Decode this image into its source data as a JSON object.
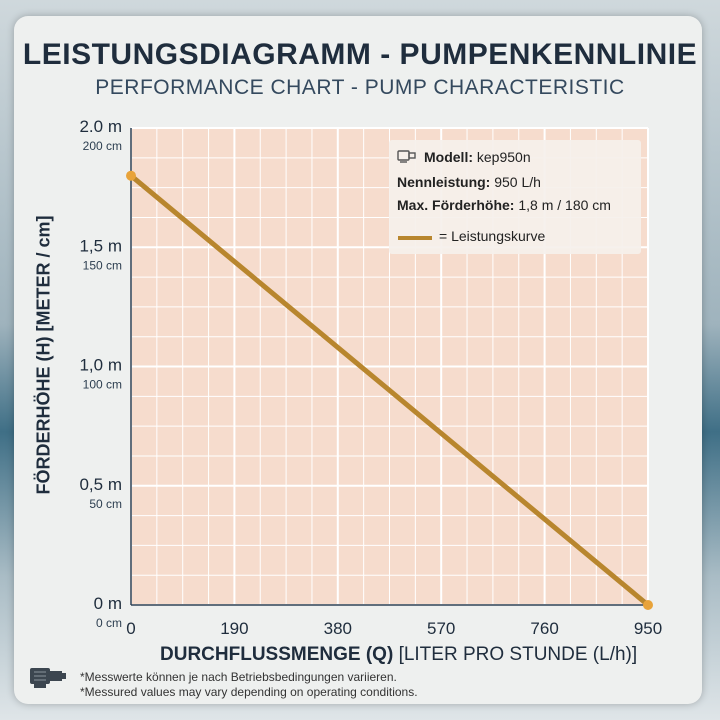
{
  "header": {
    "title": "LEISTUNGSDIAGRAMM - PUMPENKENNLINIE",
    "subtitle": "PERFORMANCE CHART - PUMP CHARACTERISTIC"
  },
  "legend": {
    "model_label": "Modell:",
    "model_value": "kep950n",
    "rated_label": "Nennleistung:",
    "rated_value": "950 L/h",
    "max_label": "Max. Förderhöhe:",
    "max_value": "1,8 m / 180 cm",
    "curve_label": "= Leistungskurve",
    "model_icon": "pump-icon"
  },
  "axes": {
    "x_label_bold": "DURCHFLUSSMENGE (Q)",
    "x_label_rest": "[LITER PRO STUNDE (L/h)]",
    "y_label": "FÖRDERHÖHE (H) [METER / cm]"
  },
  "footnotes": {
    "line1": "*Messwerte können je nach Betriebsbedingungen variieren.",
    "line2": "*Messured values may vary depending on operating conditions.",
    "icon": "pump-icon"
  },
  "colors": {
    "plot_bg": "#f6dccd",
    "grid": "#ffffff",
    "curve": "#b8862e",
    "dot": "#e8a33a"
  },
  "chart_data": {
    "type": "line",
    "x_ticks": [
      {
        "value": 0,
        "label": "0"
      },
      {
        "value": 190,
        "label": "190"
      },
      {
        "value": 380,
        "label": "380"
      },
      {
        "value": 570,
        "label": "570"
      },
      {
        "value": 760,
        "label": "760"
      },
      {
        "value": 950,
        "label": "950"
      }
    ],
    "y_ticks": [
      {
        "value": 0,
        "label": "0 m",
        "sublabel": "0 cm"
      },
      {
        "value": 0.5,
        "label": "0,5 m",
        "sublabel": "50 cm"
      },
      {
        "value": 1.0,
        "label": "1,0 m",
        "sublabel": "100 cm"
      },
      {
        "value": 1.5,
        "label": "1,5 m",
        "sublabel": "150 cm"
      },
      {
        "value": 2.0,
        "label": "2.0 m",
        "sublabel": "200 cm"
      }
    ],
    "xlim": [
      0,
      950
    ],
    "ylim": [
      0,
      2.0
    ],
    "grid": true,
    "legend_position": "top-right",
    "series": [
      {
        "name": "Leistungskurve",
        "x": [
          0,
          950
        ],
        "y": [
          1.8,
          0
        ]
      }
    ]
  }
}
